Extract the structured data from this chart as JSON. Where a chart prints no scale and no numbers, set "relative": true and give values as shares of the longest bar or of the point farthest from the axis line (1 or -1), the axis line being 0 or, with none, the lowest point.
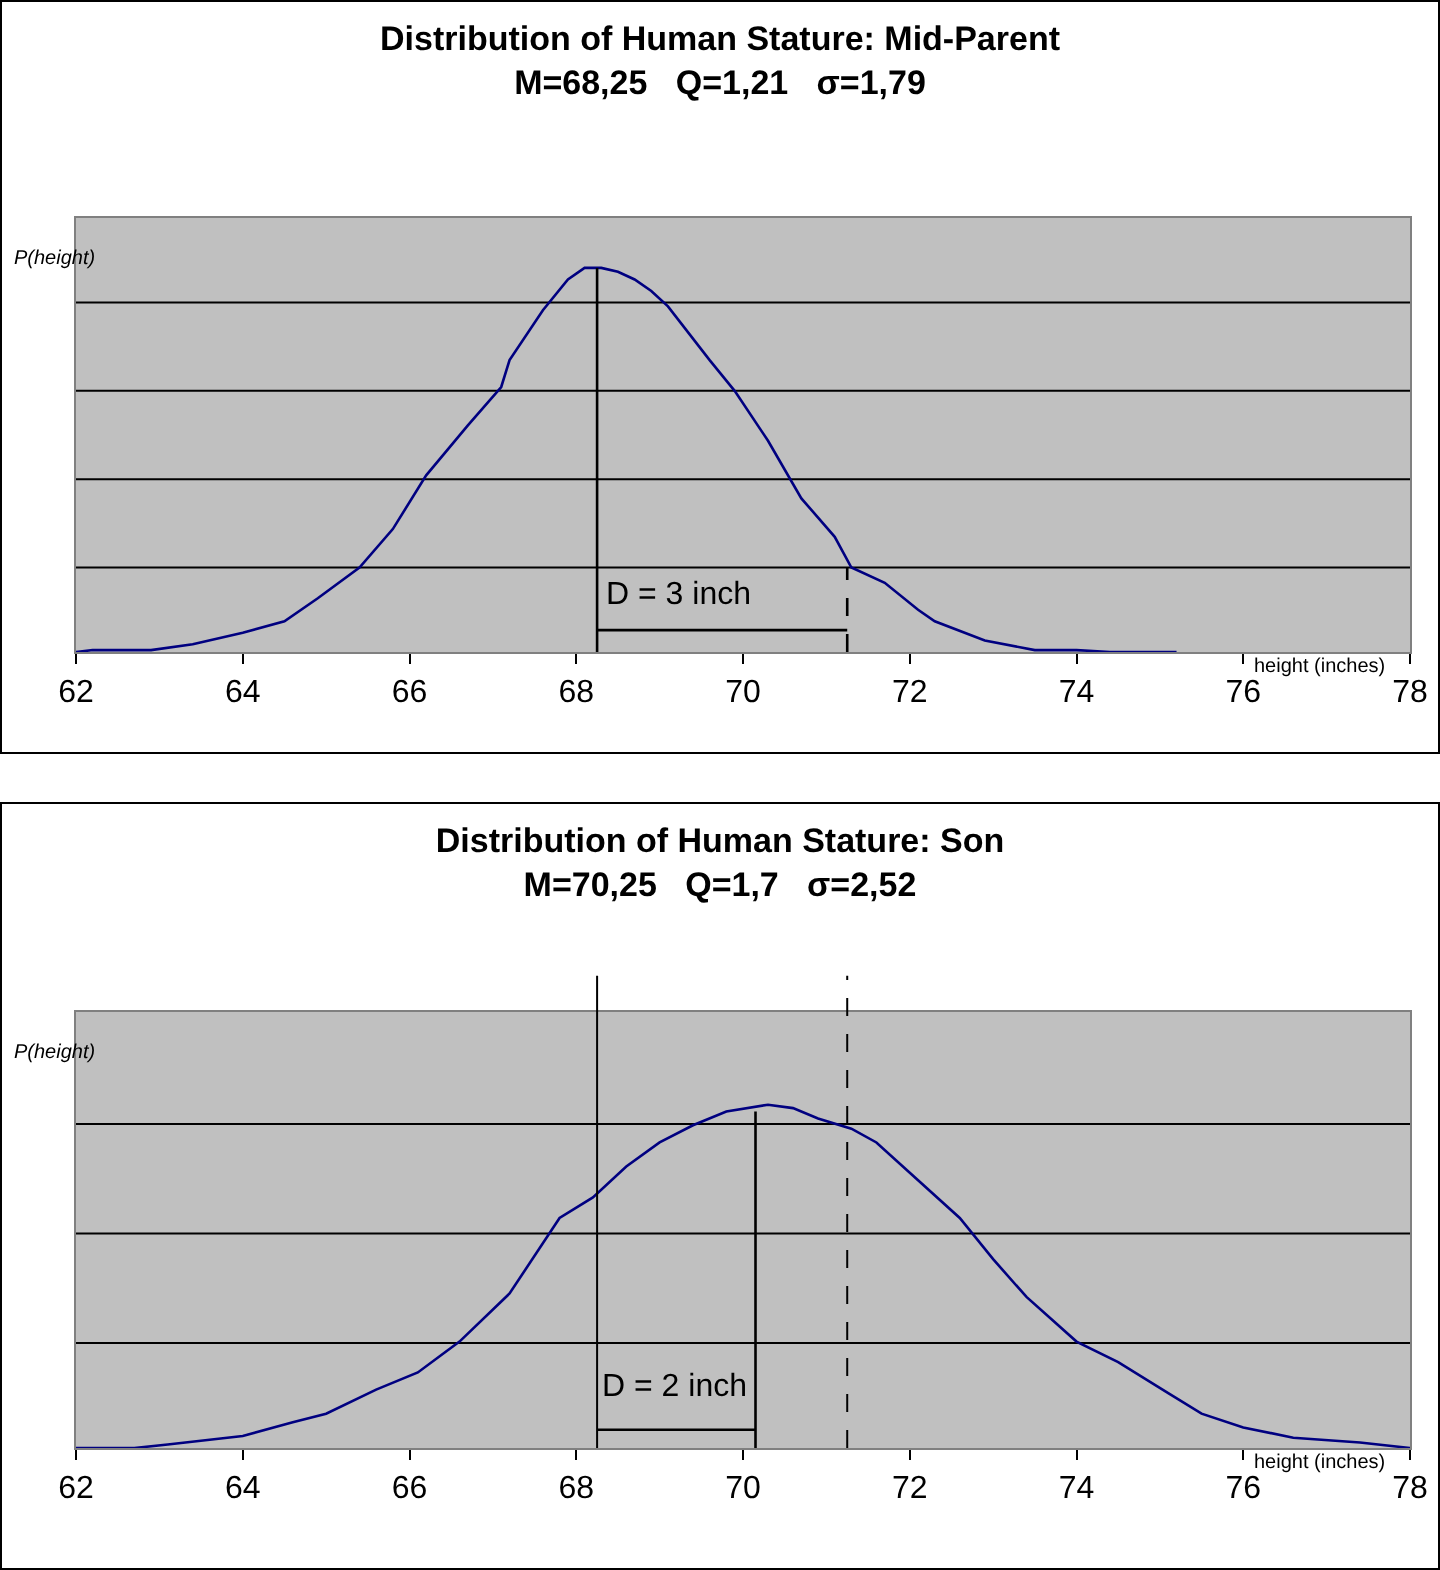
{
  "chart_data": [
    {
      "type": "line",
      "relative": true,
      "title": "Distribution of Human Stature: Mid-Parent",
      "subtitle": "M=68,25   Q=1,21   σ=1,79",
      "xlabel": "height (inches)",
      "ylabel": "P(height)",
      "xlim": [
        62,
        78
      ],
      "xticks": [
        62,
        64,
        66,
        68,
        70,
        72,
        74,
        76,
        78
      ],
      "marker": "none",
      "series": [
        {
          "color": "#000080",
          "line_style": "solid",
          "x": [
            62,
            62.2,
            62.9,
            63.4,
            64,
            64.5,
            64.9,
            65.4,
            65.8,
            66.2,
            66.7,
            67.1,
            67.2,
            67.6,
            67.9,
            68.1,
            68.3,
            68.5,
            68.7,
            68.9,
            69.1,
            69.6,
            69.9,
            70.3,
            70.7,
            71.1,
            71.3,
            71.7,
            72.1,
            72.3,
            72.9,
            73.5,
            74,
            74.4,
            75.2
          ],
          "values": [
            0,
            0.005,
            0.005,
            0.02,
            0.05,
            0.08,
            0.14,
            0.22,
            0.32,
            0.46,
            0.59,
            0.69,
            0.76,
            0.89,
            0.97,
            1,
            1,
            0.99,
            0.97,
            0.94,
            0.9,
            0.76,
            0.68,
            0.55,
            0.4,
            0.3,
            0.22,
            0.18,
            0.11,
            0.08,
            0.03,
            0.005,
            0.005,
            0,
            0
          ]
        },
        {
          "color": "#000000",
          "line_style": "solid",
          "x": [
            68.25,
            68.25
          ],
          "values": [
            0,
            1
          ]
        },
        {
          "color": "#000000",
          "line_style": "dashed",
          "x": [
            71.25,
            71.25
          ],
          "values": [
            0,
            0.22
          ]
        },
        {
          "color": "#000000",
          "line_style": "solid",
          "x": [
            68.25,
            71.25
          ],
          "values": [
            0.057,
            0.057
          ]
        }
      ],
      "ref_lines": [
        {
          "axis": "y",
          "value": 0.22,
          "color": "#000000",
          "line_style": "solid"
        },
        {
          "axis": "y",
          "value": 0.45,
          "color": "#000000",
          "line_style": "solid"
        },
        {
          "axis": "y",
          "value": 0.68,
          "color": "#000000",
          "line_style": "solid"
        },
        {
          "axis": "y",
          "value": 0.91,
          "color": "#000000",
          "line_style": "solid"
        }
      ],
      "annotations": [
        "D = 3 inch"
      ]
    },
    {
      "type": "line",
      "relative": true,
      "title": "Distribution of Human Stature: Son",
      "subtitle": "M=70,25   Q=1,7   σ=2,52",
      "xlabel": "height (inches)",
      "ylabel": "P(height)",
      "xlim": [
        62,
        78
      ],
      "xticks": [
        62,
        64,
        66,
        68,
        70,
        72,
        74,
        76,
        78
      ],
      "marker": "none",
      "series": [
        {
          "color": "#000080",
          "line_style": "solid",
          "x": [
            62,
            62.7,
            63.1,
            64,
            64.6,
            65,
            65.6,
            66.1,
            66.6,
            67.2,
            67.8,
            68.2,
            68.6,
            69,
            69.4,
            69.8,
            70.3,
            70.6,
            70.9,
            71.3,
            71.6,
            72.1,
            72.6,
            73,
            73.4,
            74,
            74.5,
            75.1,
            75.5,
            76,
            76.6,
            77.4,
            78
          ],
          "values": [
            0,
            0,
            0.01,
            0.035,
            0.075,
            0.1,
            0.17,
            0.22,
            0.31,
            0.45,
            0.67,
            0.73,
            0.82,
            0.89,
            0.94,
            0.98,
            1,
            0.99,
            0.96,
            0.93,
            0.89,
            0.78,
            0.67,
            0.55,
            0.44,
            0.31,
            0.25,
            0.16,
            0.1,
            0.06,
            0.03,
            0.016,
            0
          ]
        },
        {
          "color": "#000000",
          "line_style": "solid",
          "x": [
            70.15,
            70.15
          ],
          "values": [
            0,
            0.98
          ]
        },
        {
          "color": "#000000",
          "line_style": "solid",
          "x": [
            68.25,
            70.15
          ],
          "values": [
            0.053,
            0.053
          ]
        }
      ],
      "ref_lines": [
        {
          "axis": "y",
          "value": 0.306,
          "color": "#000000",
          "line_style": "solid"
        },
        {
          "axis": "y",
          "value": 0.625,
          "color": "#000000",
          "line_style": "solid"
        },
        {
          "axis": "y",
          "value": 0.944,
          "color": "#000000",
          "line_style": "solid"
        },
        {
          "axis": "x",
          "value": 68.25,
          "color": "#000000",
          "line_style": "solid"
        },
        {
          "axis": "x",
          "value": 71.25,
          "color": "#000000",
          "line_style": "dashed"
        }
      ],
      "annotations": [
        "D = 2 inch"
      ]
    }
  ]
}
